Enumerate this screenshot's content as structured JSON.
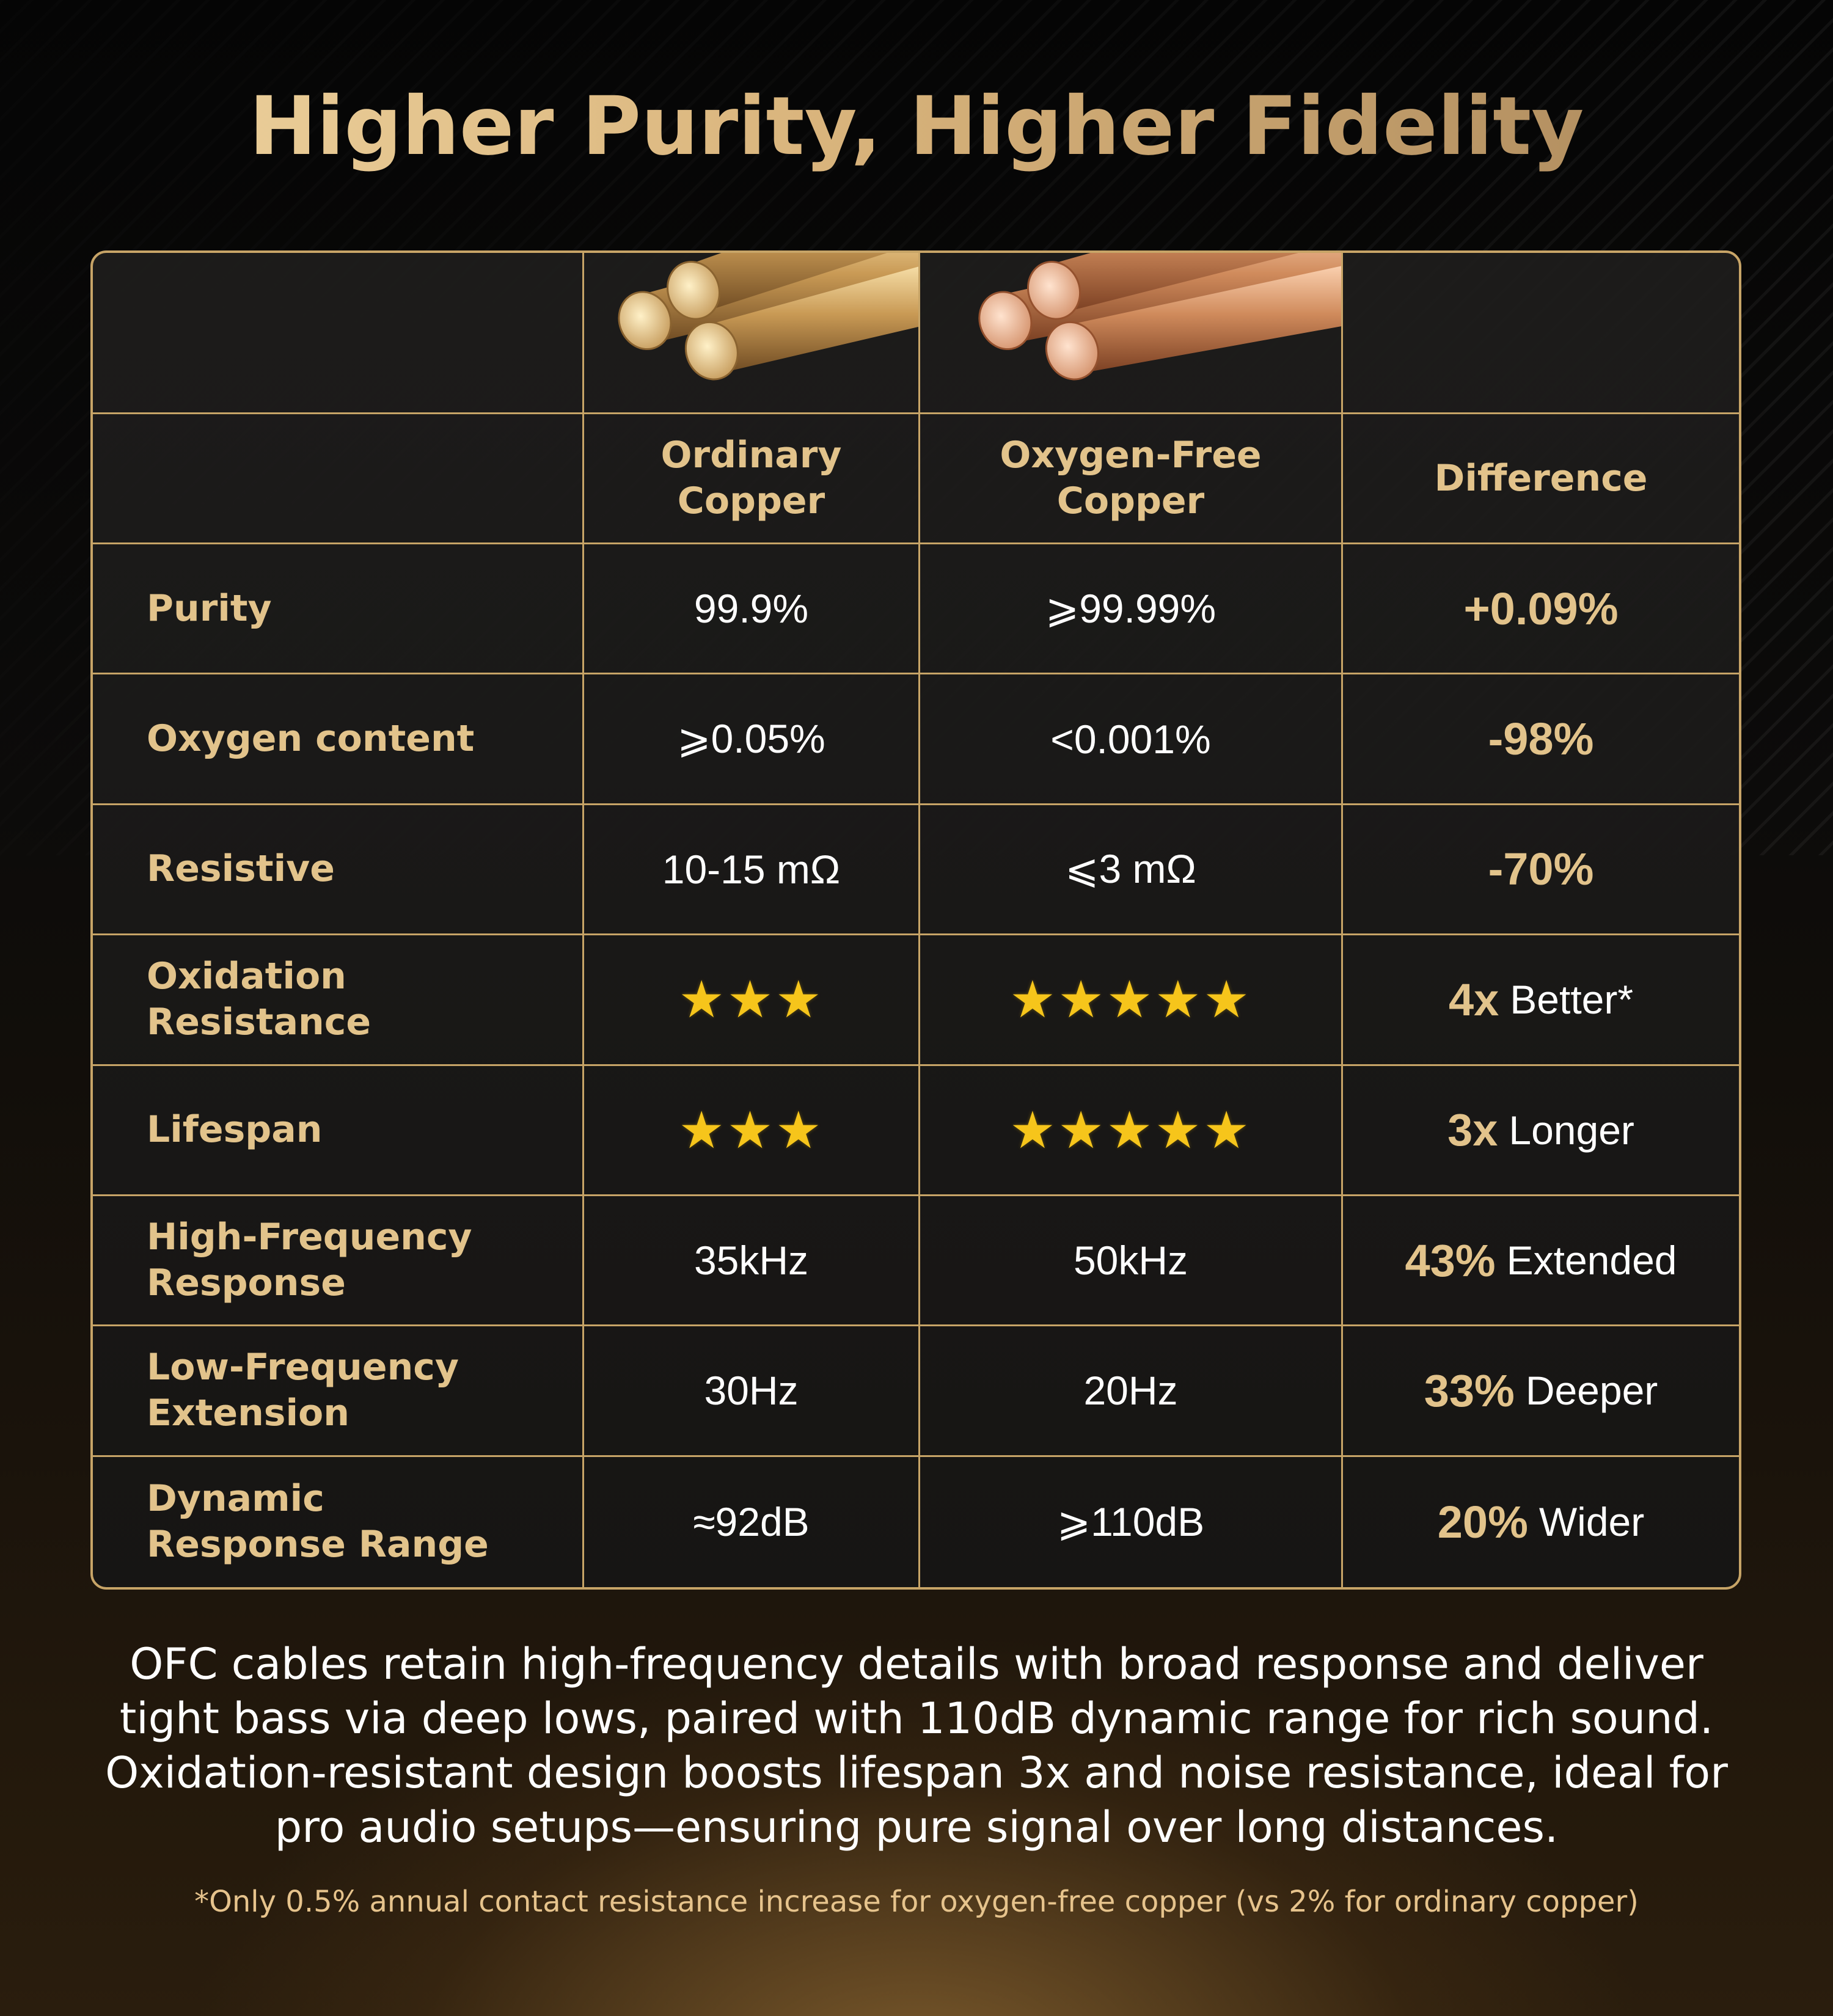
{
  "title": "Higher Purity, Higher Fidelity",
  "columns": {
    "ordinary": "Ordinary Copper",
    "ofc": "Oxygen-Free Copper",
    "difference": "Difference"
  },
  "images": {
    "ordinary": "ordinary-copper-rods-image",
    "ofc": "oxygen-free-copper-rods-image"
  },
  "colors": {
    "gold": "#c7a467",
    "gold_text": "#e2c38b",
    "star": "#f6c51b",
    "background": "#0c0b0a"
  },
  "rows": [
    {
      "label": "Purity",
      "ordinary": "99.9%",
      "ofc": "⩾99.99%",
      "diff_value": "+0.09%",
      "diff_word": ""
    },
    {
      "label": "Oxygen content",
      "ordinary": "⩾0.05%",
      "ofc": "<0.001%",
      "diff_value": "-98%",
      "diff_word": ""
    },
    {
      "label": "Resistive",
      "ordinary": "10-15 mΩ",
      "ofc": "⩽3 mΩ",
      "diff_value": "-70%",
      "diff_word": ""
    },
    {
      "label": "Oxidation Resistance",
      "ordinary_stars": 3,
      "ofc_stars": 5,
      "diff_value": "4x",
      "diff_word": "Better*"
    },
    {
      "label": "Lifespan",
      "ordinary_stars": 3,
      "ofc_stars": 5,
      "diff_value": "3x",
      "diff_word": "Longer"
    },
    {
      "label": "High-Frequency Response",
      "ordinary": "35kHz",
      "ofc": "50kHz",
      "diff_value": "43%",
      "diff_word": "Extended"
    },
    {
      "label": "Low-Frequency Extension",
      "ordinary": "30Hz",
      "ofc": "20Hz",
      "diff_value": "33%",
      "diff_word": "Deeper"
    },
    {
      "label": "Dynamic Response Range",
      "ordinary": "≈92dB",
      "ofc": "⩾110dB",
      "diff_value": "20%",
      "diff_word": "Wider"
    }
  ],
  "stars": {
    "ordinary_oxidation": "★★★",
    "ofc_oxidation": "★★★★★",
    "ordinary_lifespan": "★★★",
    "ofc_lifespan": "★★★★★"
  },
  "description": "OFC cables retain high-frequency details with broad response and deliver tight bass via deep lows, paired with 110dB dynamic range for rich sound. Oxidation-resistant design boosts lifespan 3x and noise resistance, ideal for pro audio setups—ensuring pure signal over long distances.",
  "footnote": "*Only 0.5% annual contact resistance increase for oxygen-free copper (vs 2% for ordinary copper)"
}
